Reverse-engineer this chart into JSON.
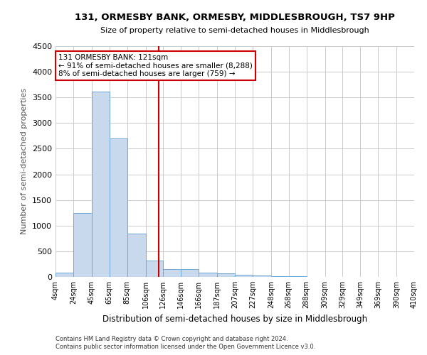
{
  "title": "131, ORMESBY BANK, ORMESBY, MIDDLESBROUGH, TS7 9HP",
  "subtitle": "Size of property relative to semi-detached houses in Middlesbrough",
  "xlabel": "Distribution of semi-detached houses by size in Middlesbrough",
  "ylabel": "Number of semi-detached properties",
  "footnote1": "Contains HM Land Registry data © Crown copyright and database right 2024.",
  "footnote2": "Contains public sector information licensed under the Open Government Licence v3.0.",
  "bin_labels": [
    "4sqm",
    "24sqm",
    "45sqm",
    "65sqm",
    "85sqm",
    "106sqm",
    "126sqm",
    "146sqm",
    "166sqm",
    "187sqm",
    "207sqm",
    "227sqm",
    "248sqm",
    "268sqm",
    "288sqm",
    "309sqm",
    "329sqm",
    "349sqm",
    "369sqm",
    "390sqm",
    "410sqm"
  ],
  "bar_values": [
    90,
    1250,
    3620,
    2700,
    850,
    320,
    155,
    155,
    80,
    65,
    40,
    30,
    20,
    15,
    0,
    0,
    0,
    0,
    0,
    0
  ],
  "bin_edges": [
    4,
    24,
    45,
    65,
    85,
    106,
    126,
    146,
    166,
    187,
    207,
    227,
    248,
    268,
    288,
    309,
    329,
    349,
    369,
    390,
    410
  ],
  "property_size": 121,
  "property_label": "131 ORMESBY BANK: 121sqm",
  "pct_smaller": 91,
  "n_smaller": 8288,
  "pct_larger": 8,
  "n_larger": 759,
  "bar_color": "#c9d9ed",
  "bar_edge_color": "#6fa8d6",
  "vline_color": "#cc0000",
  "annotation_box_color": "#cc0000",
  "grid_color": "#cccccc",
  "background_color": "#ffffff",
  "ylim": [
    0,
    4500
  ],
  "yticks": [
    0,
    500,
    1000,
    1500,
    2000,
    2500,
    3000,
    3500,
    4000,
    4500
  ]
}
